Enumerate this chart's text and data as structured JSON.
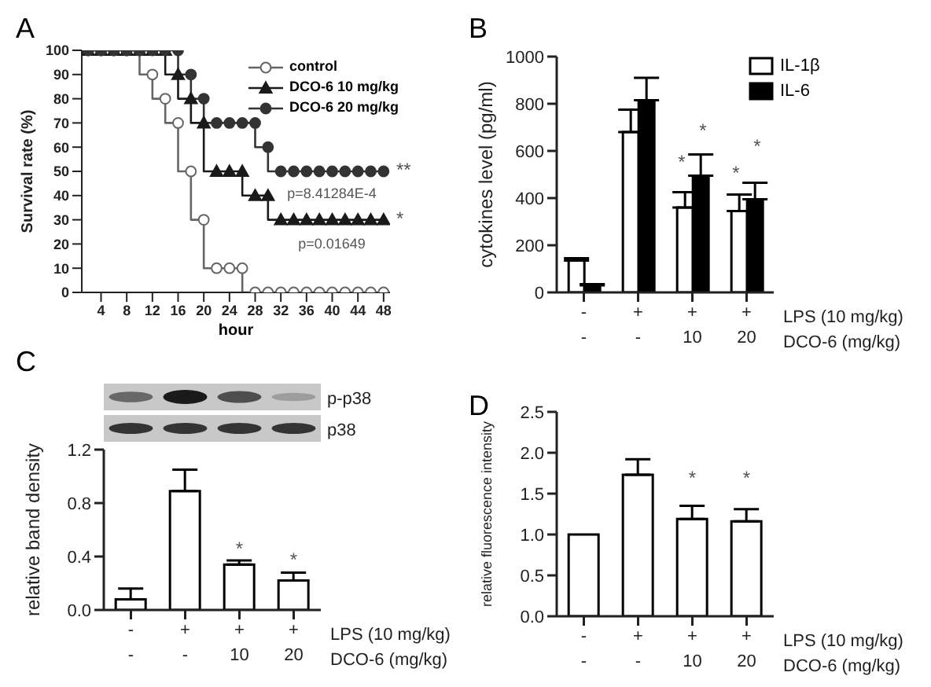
{
  "chart_data": [
    {
      "type": "step",
      "title": "A",
      "xlabel": "hour",
      "ylabel": "Survival rate (%)",
      "x": [
        2,
        4,
        6,
        8,
        10,
        12,
        14,
        16,
        18,
        20,
        22,
        24,
        26,
        28,
        30,
        32,
        34,
        36,
        38,
        40,
        42,
        44,
        46,
        48
      ],
      "series": [
        {
          "name": "control",
          "color": "#666666",
          "marker": "circle",
          "values": [
            100,
            100,
            100,
            100,
            100,
            90,
            80,
            70,
            50,
            30,
            10,
            10,
            10,
            0,
            0,
            0,
            0,
            0,
            0,
            0,
            0,
            0,
            0,
            0
          ]
        },
        {
          "name": "DCO-6 10 mg/kg",
          "color": "#1a1a1a",
          "marker": "triangle",
          "values": [
            100,
            100,
            100,
            100,
            100,
            100,
            100,
            90,
            80,
            70,
            50,
            50,
            50,
            40,
            40,
            30,
            30,
            30,
            30,
            30,
            30,
            30,
            30,
            30
          ]
        },
        {
          "name": "DCO-6 20 mg/kg",
          "color": "#333333",
          "marker": "circle",
          "values": [
            100,
            100,
            100,
            100,
            100,
            100,
            100,
            100,
            90,
            80,
            70,
            70,
            70,
            70,
            60,
            50,
            50,
            50,
            50,
            50,
            50,
            50,
            50,
            50
          ]
        }
      ],
      "xlim": [
        1,
        49
      ],
      "xticks": [
        4,
        8,
        12,
        16,
        20,
        24,
        28,
        32,
        36,
        40,
        44,
        48
      ],
      "ylim": [
        0,
        100
      ],
      "yticks": [
        0,
        10,
        20,
        30,
        40,
        50,
        60,
        70,
        80,
        90,
        100
      ],
      "legend": "top right",
      "annotations": [
        "**",
        "p=8.41284E-4",
        "*",
        "p=0.01649"
      ]
    },
    {
      "type": "bar",
      "title": "B",
      "xlabel": "LPS (10 mg/kg)\nDCO-6 (mg/kg)",
      "ylabel": "cytokines level (pg/ml)",
      "categories": [
        "-\n-",
        "+\n-",
        "+\n10",
        "+\n20"
      ],
      "series": [
        {
          "name": "IL-1β",
          "color": "#ffffff",
          "values": [
            135,
            680,
            360,
            345
          ],
          "errors": [
            10,
            95,
            65,
            70
          ]
        },
        {
          "name": "IL-6",
          "color": "#000000",
          "values": [
            30,
            815,
            495,
            395
          ],
          "errors": [
            5,
            95,
            90,
            70
          ]
        }
      ],
      "ylim": [
        0,
        1000
      ],
      "yticks": [
        0,
        200,
        400,
        600,
        800,
        1000
      ],
      "legend": "top right",
      "annotations": [
        "*",
        "*",
        "*",
        "*"
      ]
    },
    {
      "type": "bar",
      "title": "C",
      "xlabel": "LPS (10 mg/kg)\nDCO-6 (mg/kg)",
      "ylabel": "relative band density",
      "categories": [
        "-\n-",
        "+\n-",
        "+\n10",
        "+\n20"
      ],
      "values": [
        0.08,
        0.89,
        0.34,
        0.22
      ],
      "errors": [
        0.08,
        0.16,
        0.03,
        0.06
      ],
      "color": "#ffffff",
      "ylim": [
        0,
        1.2
      ],
      "yticks": [
        {
          "value": 0,
          "label": "0.0"
        },
        {
          "value": 0.4,
          "label": "0.4"
        },
        {
          "value": 0.8,
          "label": "0.8"
        },
        {
          "value": 1.2,
          "label": "1.2"
        }
      ],
      "annotations": [
        "p-p38",
        "p38",
        "*",
        "*"
      ]
    },
    {
      "type": "bar",
      "title": "D",
      "xlabel": "LPS (10 mg/kg)\nDCO-6 (mg/kg)",
      "ylabel": "relative fluorescence intensity",
      "categories": [
        "-\n-",
        "+\n-",
        "+\n10",
        "+\n20"
      ],
      "values": [
        1.0,
        1.73,
        1.19,
        1.16
      ],
      "errors": [
        null,
        0.19,
        0.16,
        0.15
      ],
      "color": "#ffffff",
      "ylim": [
        0,
        2.5
      ],
      "yticks": [
        {
          "value": 0,
          "label": "0.0"
        },
        {
          "value": 0.5,
          "label": "0.5"
        },
        {
          "value": 1,
          "label": "1.0"
        },
        {
          "value": 1.5,
          "label": "1.5"
        },
        {
          "value": 2,
          "label": "2.0"
        },
        {
          "value": 2.5,
          "label": "2.5"
        }
      ],
      "annotations": [
        "*",
        "*"
      ]
    }
  ]
}
